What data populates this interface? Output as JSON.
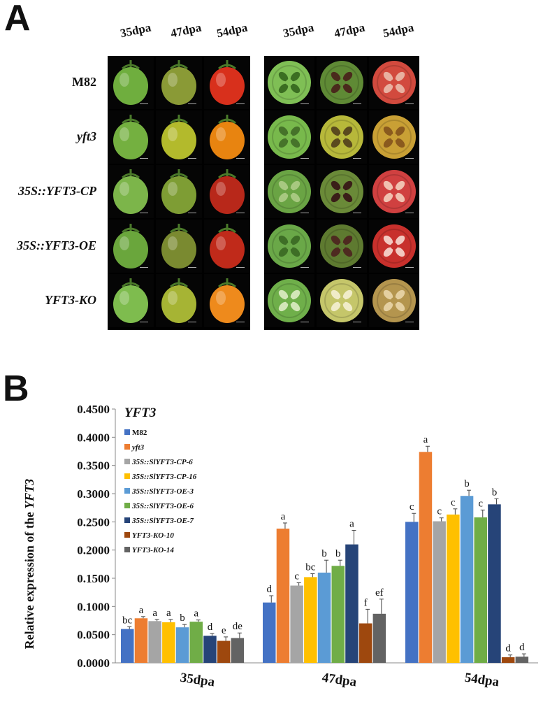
{
  "panelA": {
    "label": "A",
    "column_headers": [
      "35dpa",
      "47dpa",
      "54dpa",
      "35dpa",
      "47dpa",
      "54dpa"
    ],
    "rows": [
      {
        "label": "M82",
        "italic": false,
        "whole": [
          "#6fae3e",
          "#8a9a36",
          "#d8301c"
        ],
        "cut": [
          "#7fbf55",
          "#5f8a35",
          "#d24a3e"
        ],
        "locule": [
          "#3b6e22",
          "#4a2a1c",
          "#e8b0a0"
        ]
      },
      {
        "label": "yft3",
        "italic": true,
        "whole": [
          "#74b040",
          "#b3ba2c",
          "#e88410"
        ],
        "cut": [
          "#78b94c",
          "#b7b83a",
          "#c9a035"
        ],
        "locule": [
          "#46732a",
          "#5a4a1e",
          "#8a5a1e"
        ]
      },
      {
        "label": "35S::YFT3-CP",
        "italic": true,
        "whole": [
          "#7cb54a",
          "#7e9d34",
          "#b8281a"
        ],
        "cut": [
          "#6aa444",
          "#6a8a38",
          "#d04040"
        ],
        "locule": [
          "#a7c880",
          "#3a1e18",
          "#f0c0b0"
        ]
      },
      {
        "label": "35S::YFT3-OE",
        "italic": true,
        "whole": [
          "#6aa63c",
          "#7a8a30",
          "#c02a1a"
        ],
        "cut": [
          "#6aa848",
          "#5e7a30",
          "#c8302c"
        ],
        "locule": [
          "#3e6e26",
          "#4e2a20",
          "#f2c8c0"
        ]
      },
      {
        "label": "YFT3-KO",
        "italic": true,
        "whole": [
          "#7ebc4e",
          "#a6b434",
          "#ee8a1c"
        ],
        "cut": [
          "#6faf4a",
          "#c5c66a",
          "#b4954e"
        ],
        "locule": [
          "#d2e6b8",
          "#f0ecc8",
          "#e4cfa0"
        ]
      }
    ]
  },
  "panelB": {
    "label": "B"
  },
  "chart_data": {
    "type": "bar",
    "title": "YFT3",
    "ylabel_prefix": "Relative expression of the",
    "ylabel_gene": "YFT3",
    "xlabel": "",
    "ylim": [
      0,
      0.45
    ],
    "yticks": [
      "0.0000",
      "0.0500",
      "0.1000",
      "0.1500",
      "0.2000",
      "0.2500",
      "0.3000",
      "0.3500",
      "0.4000",
      "0.4500"
    ],
    "categories": [
      "35dpa",
      "47dpa",
      "54dpa"
    ],
    "series": [
      {
        "name": "M82",
        "italic": false,
        "color": "#4472c4",
        "values": [
          0.06,
          0.107,
          0.25
        ],
        "errors": [
          0.004,
          0.012,
          0.015
        ],
        "letters": [
          "bc",
          "d",
          "c"
        ]
      },
      {
        "name": "yft3",
        "italic": true,
        "color": "#ed7d31",
        "values": [
          0.079,
          0.238,
          0.374
        ],
        "errors": [
          0.003,
          0.01,
          0.01
        ],
        "letters": [
          "a",
          "a",
          "a"
        ]
      },
      {
        "name": "35S::SlYFT3-CP-6",
        "italic": true,
        "color": "#a5a5a5",
        "values": [
          0.074,
          0.137,
          0.251
        ],
        "errors": [
          0.003,
          0.005,
          0.006
        ],
        "letters": [
          "a",
          "c",
          "c"
        ]
      },
      {
        "name": "35S::SlYFT3-CP-16",
        "italic": true,
        "color": "#ffc000",
        "values": [
          0.072,
          0.152,
          0.263
        ],
        "errors": [
          0.005,
          0.006,
          0.01
        ],
        "letters": [
          "a",
          "bc",
          "c"
        ]
      },
      {
        "name": "35S::SlYFT3-OE-3",
        "italic": true,
        "color": "#5b9bd5",
        "values": [
          0.063,
          0.16,
          0.296
        ],
        "errors": [
          0.005,
          0.022,
          0.01
        ],
        "letters": [
          "b",
          "b",
          "b"
        ]
      },
      {
        "name": "35S::SlYFT3-OE-6",
        "italic": true,
        "color": "#70ad47",
        "values": [
          0.073,
          0.172,
          0.258
        ],
        "errors": [
          0.003,
          0.01,
          0.013
        ],
        "letters": [
          "a",
          "b",
          "c"
        ]
      },
      {
        "name": "35S::SlYFT3-OE-7",
        "italic": true,
        "color": "#264478",
        "values": [
          0.048,
          0.21,
          0.281
        ],
        "errors": [
          0.004,
          0.025,
          0.01
        ],
        "letters": [
          "d",
          "a",
          "b"
        ]
      },
      {
        "name": "YFT3-KO-10",
        "italic": true,
        "color": "#9e480e",
        "values": [
          0.039,
          0.07,
          0.01
        ],
        "errors": [
          0.007,
          0.025,
          0.004
        ],
        "letters": [
          "e",
          "f",
          "d"
        ]
      },
      {
        "name": "YFT3-KO-14",
        "italic": true,
        "color": "#636363",
        "values": [
          0.044,
          0.087,
          0.011
        ],
        "errors": [
          0.009,
          0.026,
          0.005
        ],
        "letters": [
          "de",
          "ef",
          "d"
        ]
      }
    ]
  }
}
